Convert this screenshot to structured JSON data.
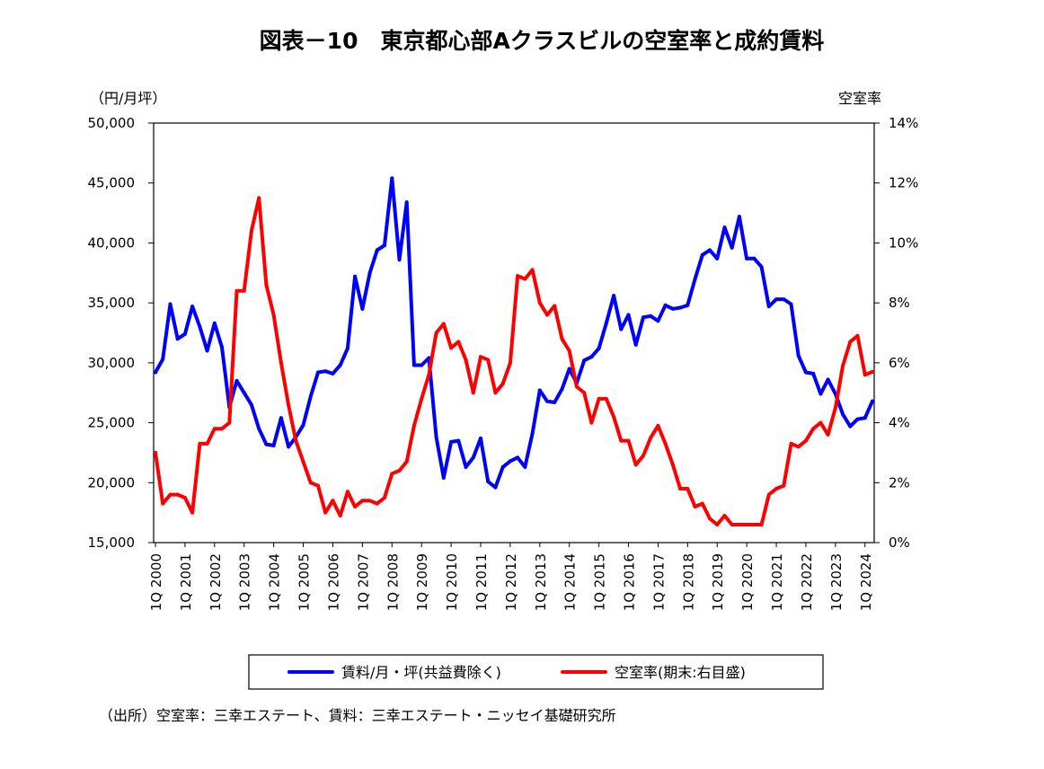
{
  "title": "図表－10　東京都心部Aクラスビルの空室率と成約賃料",
  "source": "（出所）空室率：三幸エステート、賃料：三幸エステート・ニッセイ基礎研究所",
  "chart_data": {
    "type": "line",
    "left_axis": {
      "unit_label": "（円/月坪）",
      "min": 15000,
      "max": 50000,
      "step": 5000,
      "tick_labels": [
        "15,000",
        "20,000",
        "25,000",
        "30,000",
        "35,000",
        "40,000",
        "45,000",
        "50,000"
      ]
    },
    "right_axis": {
      "unit_label": "空室率",
      "min": 0,
      "max": 14,
      "step": 2,
      "tick_labels": [
        "0%",
        "2%",
        "4%",
        "6%",
        "8%",
        "10%",
        "12%",
        "14%"
      ]
    },
    "x_tick_labels": [
      "1Q 2000",
      "1Q 2001",
      "1Q 2002",
      "1Q 2003",
      "1Q 2004",
      "1Q 2005",
      "1Q 2006",
      "1Q 2007",
      "1Q 2008",
      "1Q 2009",
      "1Q 2010",
      "1Q 2011",
      "1Q 2012",
      "1Q 2013",
      "1Q 2014",
      "1Q 2015",
      "1Q 2016",
      "1Q 2017",
      "1Q 2018",
      "1Q 2019",
      "1Q 2020",
      "1Q 2021",
      "1Q 2022",
      "1Q 2023",
      "1Q 2024"
    ],
    "legend_position": "bottom",
    "grid": false,
    "series": [
      {
        "name": "賃料/月・坪(共益費除く)",
        "axis": "left",
        "color": "#0000ff",
        "values": [
          29200,
          30300,
          34900,
          32000,
          32400,
          34700,
          33000,
          31000,
          33300,
          31300,
          26300,
          28500,
          27500,
          26500,
          24500,
          23200,
          23100,
          25400,
          23000,
          23800,
          24800,
          27200,
          29200,
          29300,
          29100,
          29800,
          31200,
          37200,
          34500,
          37500,
          39400,
          39800,
          45400,
          38600,
          43400,
          29800,
          29800,
          30400,
          23800,
          20400,
          23400,
          23500,
          21300,
          22100,
          23700,
          20100,
          19600,
          21300,
          21800,
          22100,
          21300,
          24100,
          27700,
          26800,
          26700,
          27800,
          29500,
          28300,
          30200,
          30500,
          31200,
          33300,
          35600,
          32800,
          34000,
          31500,
          33800,
          33900,
          33500,
          34800,
          34500,
          34600,
          34800,
          37000,
          39000,
          39400,
          38700,
          41300,
          39600,
          42200,
          38700,
          38700,
          38000,
          34700,
          35300,
          35300,
          34900,
          30600,
          29200,
          29100,
          27400,
          28600,
          27400,
          25700,
          24700,
          25300,
          25400,
          26800
        ]
      },
      {
        "name": "空室率(期末:右目盛)",
        "axis": "right",
        "color": "#ff0000",
        "values": [
          3.0,
          1.3,
          1.6,
          1.6,
          1.5,
          1.0,
          3.3,
          3.3,
          3.8,
          3.8,
          4.0,
          8.4,
          8.4,
          10.4,
          11.5,
          8.6,
          7.6,
          6.0,
          4.6,
          3.4,
          2.7,
          2.0,
          1.9,
          1.0,
          1.4,
          0.9,
          1.7,
          1.2,
          1.4,
          1.4,
          1.3,
          1.5,
          2.3,
          2.4,
          2.7,
          3.9,
          4.8,
          5.6,
          7.0,
          7.3,
          6.5,
          6.7,
          6.1,
          5.0,
          6.2,
          6.1,
          5.0,
          5.3,
          6.0,
          8.9,
          8.8,
          9.1,
          8.0,
          7.6,
          7.9,
          6.8,
          6.4,
          5.2,
          5.0,
          4.0,
          4.8,
          4.8,
          4.2,
          3.4,
          3.4,
          2.6,
          2.9,
          3.5,
          3.9,
          3.3,
          2.6,
          1.8,
          1.8,
          1.2,
          1.3,
          0.8,
          0.6,
          0.9,
          0.6,
          0.6,
          0.6,
          0.6,
          0.6,
          1.6,
          1.8,
          1.9,
          3.3,
          3.2,
          3.4,
          3.8,
          4.0,
          3.6,
          4.5,
          5.9,
          6.7,
          6.9,
          5.6,
          5.7
        ]
      }
    ]
  }
}
